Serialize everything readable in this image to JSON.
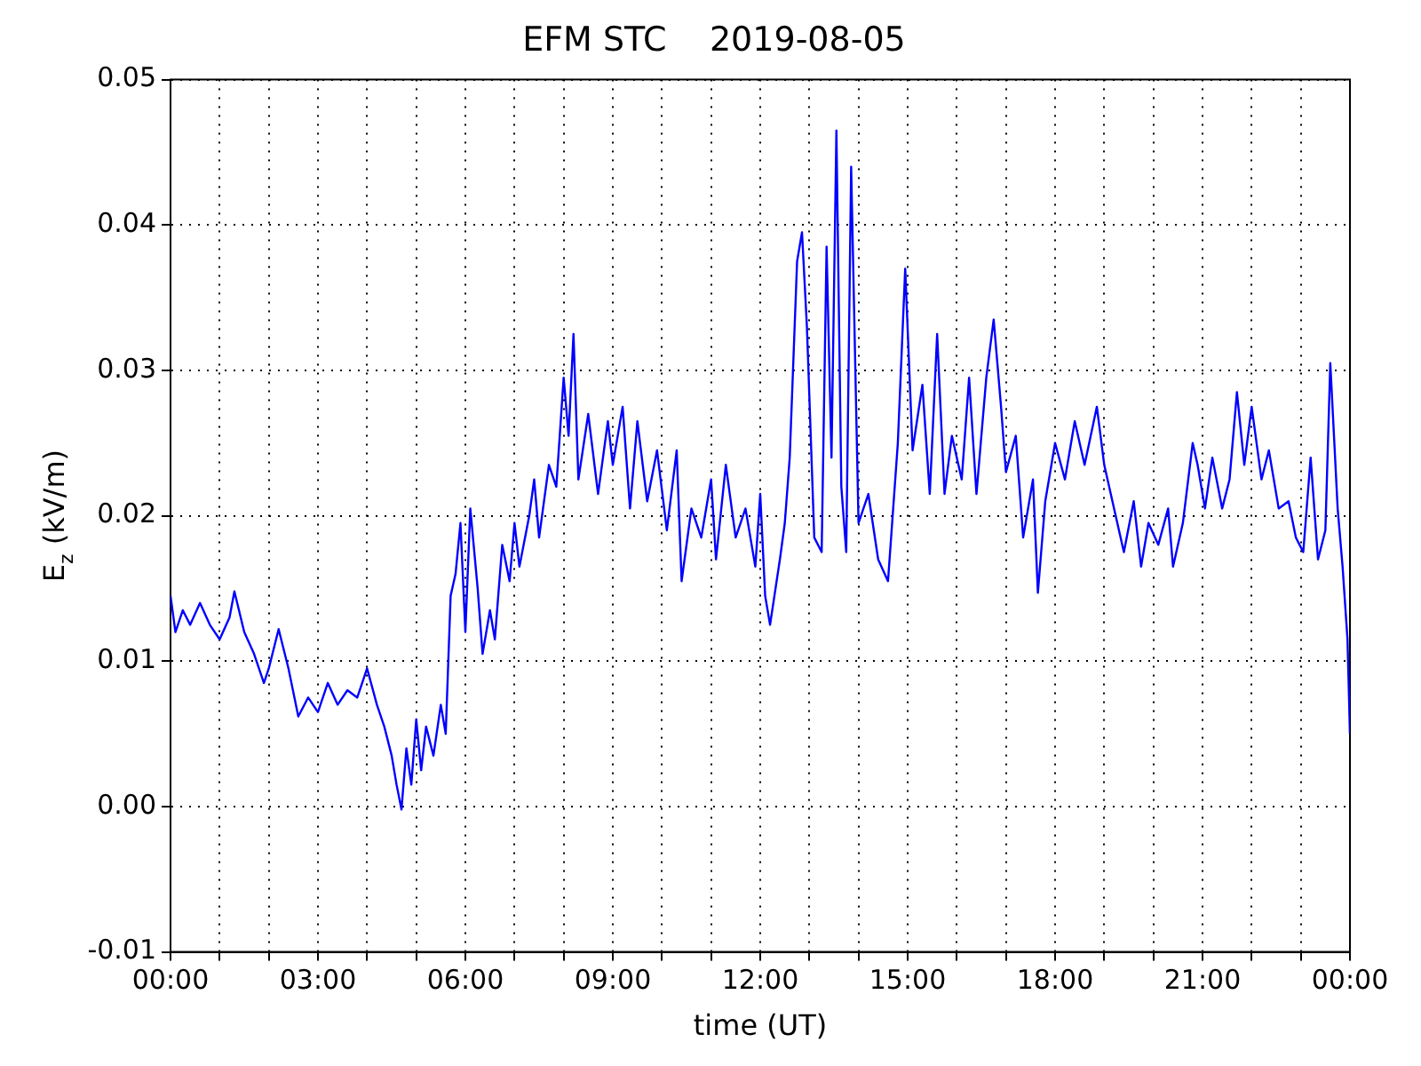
{
  "chart_data": {
    "type": "line",
    "title": "EFM STC    2019-08-05",
    "xlabel": "time (UT)",
    "ylabel": "E$_{z}$ (kV/m)",
    "x": [
      0,
      0.1,
      0.25,
      0.4,
      0.6,
      0.8,
      1.0,
      1.2,
      1.3,
      1.5,
      1.7,
      1.9,
      2.0,
      2.2,
      2.4,
      2.6,
      2.8,
      3.0,
      3.2,
      3.4,
      3.6,
      3.8,
      4.0,
      4.2,
      4.35,
      4.5,
      4.6,
      4.7,
      4.8,
      4.9,
      5.0,
      5.1,
      5.2,
      5.35,
      5.5,
      5.6,
      5.7,
      5.8,
      5.9,
      6.0,
      6.1,
      6.25,
      6.35,
      6.5,
      6.6,
      6.75,
      6.9,
      7.0,
      7.1,
      7.3,
      7.4,
      7.5,
      7.7,
      7.85,
      8.0,
      8.1,
      8.2,
      8.3,
      8.5,
      8.7,
      8.9,
      9.0,
      9.2,
      9.35,
      9.5,
      9.7,
      9.9,
      10.1,
      10.3,
      10.4,
      10.6,
      10.8,
      11.0,
      11.1,
      11.3,
      11.5,
      11.7,
      11.9,
      12.0,
      12.1,
      12.2,
      12.4,
      12.5,
      12.6,
      12.75,
      12.85,
      12.95,
      13.1,
      13.25,
      13.35,
      13.45,
      13.55,
      13.65,
      13.75,
      13.85,
      14.0,
      14.2,
      14.4,
      14.6,
      14.8,
      14.95,
      15.1,
      15.3,
      15.45,
      15.6,
      15.75,
      15.9,
      16.1,
      16.25,
      16.4,
      16.6,
      16.75,
      16.9,
      17.0,
      17.2,
      17.35,
      17.55,
      17.65,
      17.8,
      18.0,
      18.2,
      18.4,
      18.6,
      18.85,
      19.0,
      19.2,
      19.4,
      19.6,
      19.75,
      19.9,
      20.1,
      20.3,
      20.4,
      20.6,
      20.8,
      20.9,
      21.05,
      21.2,
      21.4,
      21.55,
      21.7,
      21.85,
      22.0,
      22.2,
      22.35,
      22.55,
      22.75,
      22.9,
      23.05,
      23.2,
      23.35,
      23.5,
      23.6,
      23.75,
      23.85,
      23.95,
      24.0
    ],
    "series": [
      {
        "color": "#0000ff",
        "values": [
          0.0145,
          0.012,
          0.0135,
          0.0125,
          0.014,
          0.0125,
          0.0115,
          0.013,
          0.0148,
          0.012,
          0.0105,
          0.0085,
          0.0095,
          0.0122,
          0.0095,
          0.0062,
          0.0075,
          0.0065,
          0.0085,
          0.007,
          0.008,
          0.0075,
          0.0095,
          0.007,
          0.0055,
          0.0035,
          0.0015,
          -0.0002,
          0.004,
          0.0015,
          0.006,
          0.0025,
          0.0055,
          0.0035,
          0.007,
          0.005,
          0.0145,
          0.016,
          0.0195,
          0.012,
          0.0205,
          0.015,
          0.0105,
          0.0135,
          0.0115,
          0.018,
          0.0155,
          0.0195,
          0.0165,
          0.02,
          0.0225,
          0.0185,
          0.0235,
          0.022,
          0.0295,
          0.0255,
          0.0325,
          0.0225,
          0.027,
          0.0215,
          0.0265,
          0.0235,
          0.0275,
          0.0205,
          0.0265,
          0.021,
          0.0245,
          0.019,
          0.0245,
          0.0155,
          0.0205,
          0.0185,
          0.0225,
          0.017,
          0.0235,
          0.0185,
          0.0205,
          0.0165,
          0.0215,
          0.0145,
          0.0125,
          0.017,
          0.0195,
          0.024,
          0.0375,
          0.0395,
          0.033,
          0.0185,
          0.0175,
          0.0385,
          0.024,
          0.0465,
          0.022,
          0.0175,
          0.044,
          0.0195,
          0.0215,
          0.017,
          0.0155,
          0.025,
          0.037,
          0.0245,
          0.029,
          0.0215,
          0.0325,
          0.0215,
          0.0255,
          0.0225,
          0.0295,
          0.0215,
          0.0295,
          0.0335,
          0.0275,
          0.023,
          0.0255,
          0.0185,
          0.0225,
          0.0147,
          0.021,
          0.025,
          0.0225,
          0.0265,
          0.0235,
          0.0275,
          0.0235,
          0.0205,
          0.0175,
          0.021,
          0.0165,
          0.0195,
          0.018,
          0.0205,
          0.0165,
          0.0195,
          0.025,
          0.0235,
          0.0205,
          0.024,
          0.0205,
          0.0225,
          0.0285,
          0.0235,
          0.0275,
          0.0225,
          0.0245,
          0.0205,
          0.021,
          0.0185,
          0.0175,
          0.024,
          0.017,
          0.019,
          0.0305,
          0.0205,
          0.0165,
          0.0115,
          0.005
        ]
      }
    ],
    "xlim": [
      0,
      24
    ],
    "xticks": [
      {
        "value": 0,
        "label": "00:00"
      },
      {
        "value": 1,
        "label": null
      },
      {
        "value": 2,
        "label": null
      },
      {
        "value": 3,
        "label": "03:00"
      },
      {
        "value": 4,
        "label": null
      },
      {
        "value": 5,
        "label": null
      },
      {
        "value": 6,
        "label": "06:00"
      },
      {
        "value": 7,
        "label": null
      },
      {
        "value": 8,
        "label": null
      },
      {
        "value": 9,
        "label": "09:00"
      },
      {
        "value": 10,
        "label": null
      },
      {
        "value": 11,
        "label": null
      },
      {
        "value": 12,
        "label": "12:00"
      },
      {
        "value": 13,
        "label": null
      },
      {
        "value": 14,
        "label": null
      },
      {
        "value": 15,
        "label": "15:00"
      },
      {
        "value": 16,
        "label": null
      },
      {
        "value": 17,
        "label": null
      },
      {
        "value": 18,
        "label": "18:00"
      },
      {
        "value": 19,
        "label": null
      },
      {
        "value": 20,
        "label": null
      },
      {
        "value": 21,
        "label": "21:00"
      },
      {
        "value": 22,
        "label": null
      },
      {
        "value": 23,
        "label": null
      },
      {
        "value": 24,
        "label": "00:00"
      }
    ],
    "ylim": [
      -0.01,
      0.05
    ],
    "yticks": [
      {
        "value": -0.01,
        "label": "-0.01"
      },
      {
        "value": 0,
        "label": "0.00"
      },
      {
        "value": 0.01,
        "label": "0.01"
      },
      {
        "value": 0.02,
        "label": "0.02"
      },
      {
        "value": 0.03,
        "label": "0.03"
      },
      {
        "value": 0.04,
        "label": "0.04"
      },
      {
        "value": 0.05,
        "label": "0.05"
      }
    ],
    "grid": true,
    "legend": false,
    "marker": "none",
    "line_style": "solid"
  }
}
